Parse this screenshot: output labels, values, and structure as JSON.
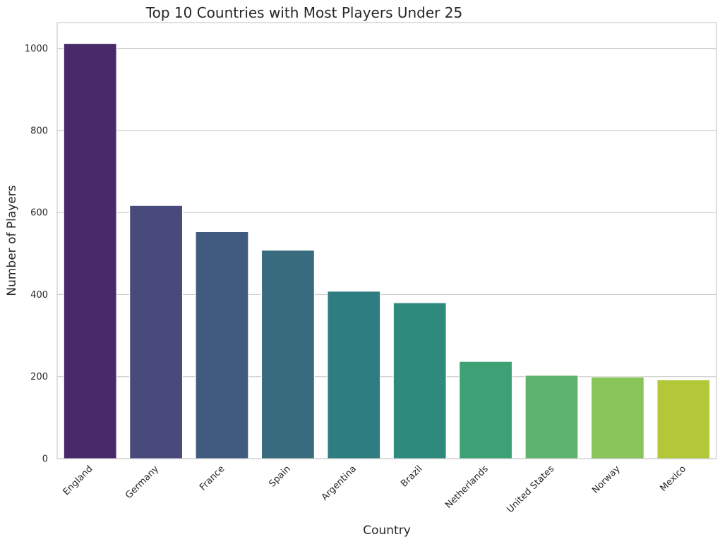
{
  "chart_data": {
    "type": "bar",
    "title": "Top 10 Countries with Most Players Under 25",
    "xlabel": "Country",
    "ylabel": "Number of Players",
    "categories": [
      "England",
      "Germany",
      "France",
      "Spain",
      "Argentina",
      "Brazil",
      "Netherlands",
      "United States",
      "Norway",
      "Mexico"
    ],
    "values": [
      1012,
      617,
      553,
      508,
      408,
      380,
      237,
      203,
      199,
      192
    ],
    "colors": [
      "#482a6b",
      "#484a7c",
      "#415a80",
      "#386b7e",
      "#2e7d80",
      "#2e8a7c",
      "#3da175",
      "#5eb46e",
      "#89c45a",
      "#b2c839"
    ],
    "yticks": [
      0,
      200,
      400,
      600,
      800,
      1000
    ],
    "ylim": [
      0,
      1063
    ],
    "grid": "horizontal",
    "legend": "none"
  }
}
